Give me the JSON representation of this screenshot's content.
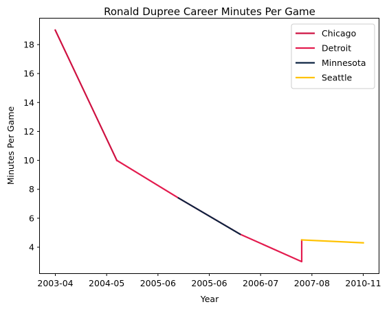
{
  "chart_data": {
    "type": "line",
    "title": "Ronald Dupree Career Minutes Per Game",
    "xlabel": "Year",
    "ylabel": "Minutes Per Game",
    "x_tick_labels": [
      "2003-04",
      "2004-05",
      "2005-06",
      "2005-06",
      "2006-07",
      "2007-08",
      "2010-11"
    ],
    "y_ticks": [
      4,
      6,
      8,
      10,
      12,
      14,
      16,
      18
    ],
    "xlim": [
      -0.25,
      5.25
    ],
    "ylim": [
      2.2,
      19.8
    ],
    "grid": false,
    "legend_position": "top-right",
    "series": [
      {
        "name": "Chicago",
        "color": "#CE1141",
        "x": [
          0,
          1
        ],
        "y": [
          19.0,
          10.0
        ]
      },
      {
        "name": "Detroit",
        "color": "#E31B4E",
        "x": [
          1,
          2,
          3,
          4,
          4
        ],
        "y": [
          10.0,
          7.4,
          4.9,
          3.0,
          4.5
        ]
      },
      {
        "name": "Minnesota",
        "color": "#0C2340",
        "x": [
          2,
          3
        ],
        "y": [
          7.4,
          4.9
        ]
      },
      {
        "name": "Seattle",
        "color": "#FFC200",
        "x": [
          4,
          5
        ],
        "y": [
          4.5,
          4.3
        ]
      }
    ]
  }
}
